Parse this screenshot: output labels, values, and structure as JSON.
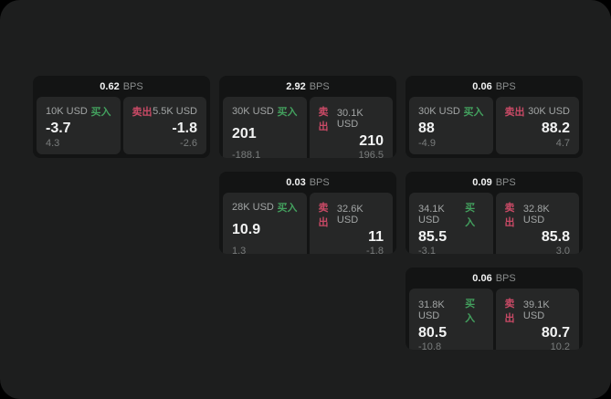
{
  "unit_label": "BPS",
  "colors": {
    "background": "#000000",
    "panel": "#1d1e1e",
    "card": "#131414",
    "pane": "#262727",
    "buy_green": "#43a05e",
    "sell_red": "#c94a66",
    "value_white": "#f2f3f3",
    "label_gray": "#a2a5a5",
    "muted_gray": "#797c7c"
  },
  "cards": [
    {
      "bps": "0.62",
      "unit": "BPS",
      "buy": {
        "amount": "10K USD",
        "side": "买入",
        "value": "-3.7",
        "delta": "4.3"
      },
      "sell": {
        "side": "卖出",
        "amount": "5.5K USD",
        "value": "-1.8",
        "delta": "-2.6"
      }
    },
    {
      "bps": "2.92",
      "unit": "BPS",
      "buy": {
        "amount": "30K USD",
        "side": "买入",
        "value": "201",
        "delta": "-188.1"
      },
      "sell": {
        "side": "卖出",
        "amount": "30.1K USD",
        "value": "210",
        "delta": "196.5"
      }
    },
    {
      "bps": "0.06",
      "unit": "BPS",
      "buy": {
        "amount": "30K USD",
        "side": "买入",
        "value": "88",
        "delta": "-4.9"
      },
      "sell": {
        "side": "卖出",
        "amount": "30K USD",
        "value": "88.2",
        "delta": "4.7"
      }
    },
    {
      "bps": "0.03",
      "unit": "BPS",
      "buy": {
        "amount": "28K USD",
        "side": "买入",
        "value": "10.9",
        "delta": "1.3"
      },
      "sell": {
        "side": "卖出",
        "amount": "32.6K USD",
        "value": "11",
        "delta": "-1.8"
      }
    },
    {
      "bps": "0.09",
      "unit": "BPS",
      "buy": {
        "amount": "34.1K USD",
        "side": "买入",
        "value": "85.5",
        "delta": "-3.1"
      },
      "sell": {
        "side": "卖出",
        "amount": "32.8K USD",
        "value": "85.8",
        "delta": "3.0"
      }
    },
    {
      "bps": "0.06",
      "unit": "BPS",
      "buy": {
        "amount": "31.8K USD",
        "side": "买入",
        "value": "80.5",
        "delta": "-10.8"
      },
      "sell": {
        "side": "卖出",
        "amount": "39.1K USD",
        "value": "80.7",
        "delta": "10.2"
      }
    }
  ]
}
